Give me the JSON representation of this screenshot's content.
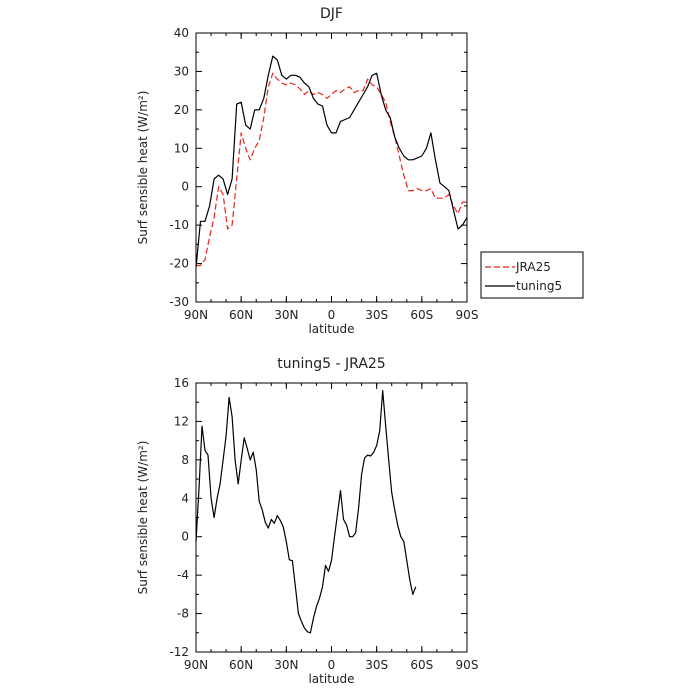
{
  "chart_data": [
    {
      "type": "line",
      "title": "DJF",
      "xlabel": "latitude",
      "ylabel": "Surf sensible heat (W/m²)",
      "xlim": [
        90,
        -90
      ],
      "ylim": [
        -30,
        40
      ],
      "xticks": [
        90,
        60,
        30,
        0,
        -30,
        -60,
        -90
      ],
      "xtick_labels": [
        "90N",
        "60N",
        "30N",
        "0",
        "30S",
        "60S",
        "90S"
      ],
      "yticks": [
        -30,
        -20,
        -10,
        0,
        10,
        20,
        30,
        40
      ],
      "ytick_labels": [
        "-30",
        "-20",
        "-10",
        "0",
        "10",
        "20",
        "30",
        "40"
      ],
      "legend": "right",
      "series": [
        {
          "name": "JRA25",
          "color": "#e8231c",
          "dash": "dashed",
          "points": [
            [
              90,
              -20.5
            ],
            [
              87,
              -20.5
            ],
            [
              84,
              -19
            ],
            [
              81,
              -13
            ],
            [
              78,
              -8
            ],
            [
              75,
              0
            ],
            [
              72,
              -2
            ],
            [
              69,
              -11
            ],
            [
              66,
              -10
            ],
            [
              63,
              2
            ],
            [
              60,
              14
            ],
            [
              57,
              10
            ],
            [
              54,
              7
            ],
            [
              51,
              10
            ],
            [
              48,
              12
            ],
            [
              45,
              18
            ],
            [
              42,
              26
            ],
            [
              39,
              29.5
            ],
            [
              36,
              28
            ],
            [
              33,
              27
            ],
            [
              30,
              26.5
            ],
            [
              27,
              27
            ],
            [
              24,
              26.5
            ],
            [
              21,
              25.5
            ],
            [
              18,
              24
            ],
            [
              15,
              25
            ],
            [
              12,
              24
            ],
            [
              9,
              24.5
            ],
            [
              6,
              24
            ],
            [
              3,
              23
            ],
            [
              0,
              24
            ],
            [
              -3,
              25
            ],
            [
              -6,
              24.5
            ],
            [
              -9,
              25.5
            ],
            [
              -12,
              26
            ],
            [
              -15,
              24.5
            ],
            [
              -18,
              25
            ],
            [
              -21,
              25
            ],
            [
              -24,
              28
            ],
            [
              -27,
              26.5
            ],
            [
              -30,
              26
            ],
            [
              -33,
              24
            ],
            [
              -36,
              22
            ],
            [
              -39,
              17
            ],
            [
              -42,
              13
            ],
            [
              -45,
              8
            ],
            [
              -48,
              3
            ],
            [
              -51,
              -1
            ],
            [
              -54,
              -1
            ],
            [
              -57,
              -0.5
            ],
            [
              -60,
              -1
            ],
            [
              -63,
              -1
            ],
            [
              -66,
              -0.5
            ],
            [
              -69,
              -3
            ],
            [
              -72,
              -3
            ],
            [
              -75,
              -3
            ],
            [
              -78,
              -2
            ],
            [
              -81,
              -5
            ],
            [
              -84,
              -7
            ],
            [
              -87,
              -4
            ],
            [
              -90,
              -4
            ]
          ]
        },
        {
          "name": "tuning5",
          "color": "#000000",
          "dash": "solid",
          "points": [
            [
              90,
              -21
            ],
            [
              87,
              -9
            ],
            [
              84,
              -9
            ],
            [
              81,
              -5
            ],
            [
              78,
              2
            ],
            [
              75,
              3
            ],
            [
              72,
              2
            ],
            [
              69,
              -2
            ],
            [
              66,
              2
            ],
            [
              63,
              21.5
            ],
            [
              60,
              22
            ],
            [
              57,
              16
            ],
            [
              54,
              15
            ],
            [
              51,
              20
            ],
            [
              48,
              20
            ],
            [
              45,
              23
            ],
            [
              42,
              29
            ],
            [
              39,
              34
            ],
            [
              36,
              33
            ],
            [
              33,
              29
            ],
            [
              30,
              28
            ],
            [
              27,
              29
            ],
            [
              24,
              29
            ],
            [
              21,
              28.5
            ],
            [
              18,
              27
            ],
            [
              15,
              26
            ],
            [
              12,
              23
            ],
            [
              9,
              21.5
            ],
            [
              6,
              21
            ],
            [
              3,
              16
            ],
            [
              0,
              14
            ],
            [
              -3,
              14
            ],
            [
              -6,
              17
            ],
            [
              -9,
              17.5
            ],
            [
              -12,
              18
            ],
            [
              -15,
              20
            ],
            [
              -18,
              22
            ],
            [
              -21,
              24
            ],
            [
              -24,
              26
            ],
            [
              -27,
              29
            ],
            [
              -30,
              29.5
            ],
            [
              -33,
              24
            ],
            [
              -36,
              20
            ],
            [
              -39,
              18
            ],
            [
              -42,
              13
            ],
            [
              -45,
              10
            ],
            [
              -48,
              8
            ],
            [
              -51,
              7
            ],
            [
              -54,
              7
            ],
            [
              -57,
              7.5
            ],
            [
              -60,
              8
            ],
            [
              -63,
              10
            ],
            [
              -66,
              14
            ],
            [
              -69,
              7
            ],
            [
              -72,
              1
            ],
            [
              -75,
              0
            ],
            [
              -78,
              -1
            ],
            [
              -81,
              -6
            ],
            [
              -84,
              -11
            ],
            [
              -87,
              -10
            ],
            [
              -90,
              -8
            ]
          ]
        }
      ]
    },
    {
      "type": "line",
      "title": "tuning5 - JRA25",
      "xlabel": "latitude",
      "ylabel": "Surf sensible heat (W/m²)",
      "xlim": [
        90,
        -90
      ],
      "ylim": [
        -12,
        16
      ],
      "xticks": [
        90,
        60,
        30,
        0,
        -30,
        -60,
        -90
      ],
      "xtick_labels": [
        "90N",
        "60N",
        "30N",
        "0",
        "30S",
        "60S",
        "90S"
      ],
      "yticks": [
        -12,
        -8,
        -4,
        0,
        4,
        8,
        12,
        16
      ],
      "ytick_labels": [
        "-12",
        "-8",
        "-4",
        "0",
        "4",
        "8",
        "12",
        "16"
      ],
      "series": [
        {
          "color": "#000000",
          "dash": "solid",
          "points": [
            [
              90,
              -0.5
            ],
            [
              88,
              5
            ],
            [
              86,
              11.5
            ],
            [
              84,
              9
            ],
            [
              82,
              8.5
            ],
            [
              80,
              4
            ],
            [
              78,
              2
            ],
            [
              76,
              4
            ],
            [
              74,
              5.5
            ],
            [
              72,
              8
            ],
            [
              70,
              10.5
            ],
            [
              68,
              14.5
            ],
            [
              66,
              12.5
            ],
            [
              64,
              8
            ],
            [
              62,
              5.5
            ],
            [
              60,
              8
            ],
            [
              58,
              10.3
            ],
            [
              56,
              9.2
            ],
            [
              54,
              8
            ],
            [
              52,
              8.8
            ],
            [
              50,
              7
            ],
            [
              48,
              3.7
            ],
            [
              46,
              2.8
            ],
            [
              44,
              1.5
            ],
            [
              42,
              0.9
            ],
            [
              40,
              1.8
            ],
            [
              38,
              1.4
            ],
            [
              36,
              2.2
            ],
            [
              34,
              1.7
            ],
            [
              32,
              1
            ],
            [
              30,
              -0.5
            ],
            [
              28,
              -2.4
            ],
            [
              26,
              -2.5
            ],
            [
              24,
              -5.2
            ],
            [
              22,
              -8
            ],
            [
              20,
              -8.8
            ],
            [
              18,
              -9.5
            ],
            [
              16,
              -9.9
            ],
            [
              14,
              -10
            ],
            [
              12,
              -8.5
            ],
            [
              10,
              -7.3
            ],
            [
              8,
              -6.4
            ],
            [
              6,
              -5.2
            ],
            [
              4,
              -3
            ],
            [
              2,
              -3.6
            ],
            [
              0,
              -2.5
            ],
            [
              -2,
              0
            ],
            [
              -4,
              2.4
            ],
            [
              -6,
              4.8
            ],
            [
              -8,
              1.8
            ],
            [
              -10,
              1.2
            ],
            [
              -12,
              0
            ],
            [
              -14,
              0
            ],
            [
              -16,
              0.4
            ],
            [
              -18,
              3
            ],
            [
              -20,
              6.5
            ],
            [
              -22,
              8.2
            ],
            [
              -24,
              8.5
            ],
            [
              -26,
              8.4
            ],
            [
              -28,
              8.8
            ],
            [
              -30,
              9.5
            ],
            [
              -32,
              11
            ],
            [
              -34,
              15.2
            ],
            [
              -36,
              11.5
            ],
            [
              -38,
              8
            ],
            [
              -40,
              4.6
            ],
            [
              -42,
              2.8
            ],
            [
              -44,
              1.2
            ],
            [
              -46,
              0
            ],
            [
              -48,
              -0.5
            ],
            [
              -50,
              -2.5
            ],
            [
              -52,
              -4.5
            ],
            [
              -54,
              -6
            ],
            [
              -56,
              -5.2
            ]
          ]
        }
      ]
    }
  ]
}
